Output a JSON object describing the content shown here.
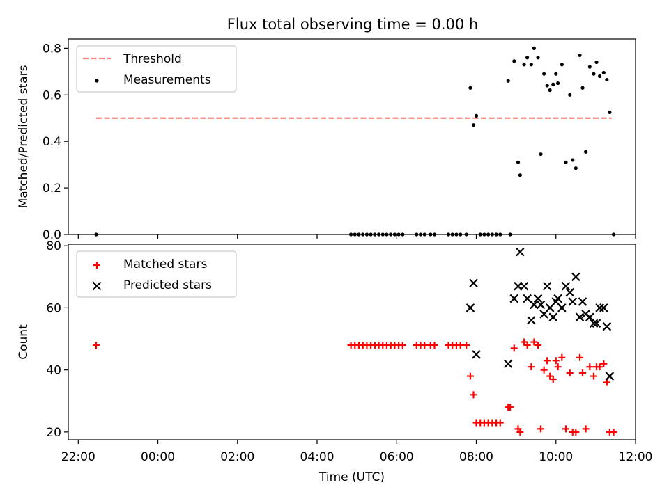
{
  "figure": {
    "title": "Flux total observing time = 0.00 h"
  },
  "chart_data": [
    {
      "type": "scatter",
      "panel": "top",
      "ylabel": "Matched/Predicted stars",
      "xlabel": "",
      "x_unit": "hours relative to 00:00 UTC",
      "xlim": [
        -2.25,
        12.0
      ],
      "ylim": [
        0.0,
        0.84
      ],
      "yticks": [
        0.0,
        0.2,
        0.4,
        0.6,
        0.8
      ],
      "ytick_labels": [
        "0.0",
        "0.2",
        "0.4",
        "0.6",
        "0.8"
      ],
      "legend": {
        "placement": "top-left",
        "entries": [
          "Threshold",
          "Measurements"
        ]
      },
      "threshold": {
        "label": "Threshold",
        "y": 0.5,
        "x_range": [
          -1.55,
          11.4
        ],
        "color": "#ff7f7f"
      },
      "series": [
        {
          "name": "Measurements",
          "color": "#000000",
          "points": [
            [
              -1.55,
              0.0
            ],
            [
              4.85,
              0.0
            ],
            [
              4.95,
              0.0
            ],
            [
              5.05,
              0.0
            ],
            [
              5.15,
              0.0
            ],
            [
              5.25,
              0.0
            ],
            [
              5.35,
              0.0
            ],
            [
              5.45,
              0.0
            ],
            [
              5.55,
              0.0
            ],
            [
              5.65,
              0.0
            ],
            [
              5.75,
              0.0
            ],
            [
              5.85,
              0.0
            ],
            [
              5.95,
              0.0
            ],
            [
              6.05,
              0.0
            ],
            [
              6.15,
              0.0
            ],
            [
              6.5,
              0.0
            ],
            [
              6.6,
              0.0
            ],
            [
              6.7,
              0.0
            ],
            [
              6.85,
              0.0
            ],
            [
              6.95,
              0.0
            ],
            [
              7.3,
              0.0
            ],
            [
              7.4,
              0.0
            ],
            [
              7.5,
              0.0
            ],
            [
              7.6,
              0.0
            ],
            [
              7.75,
              0.0
            ],
            [
              8.1,
              0.0
            ],
            [
              8.2,
              0.0
            ],
            [
              8.3,
              0.0
            ],
            [
              8.4,
              0.0
            ],
            [
              8.5,
              0.0
            ],
            [
              8.6,
              0.0
            ],
            [
              8.85,
              0.0
            ],
            [
              11.45,
              0.0
            ],
            [
              7.85,
              0.63
            ],
            [
              7.93,
              0.47
            ],
            [
              8.0,
              0.51
            ],
            [
              8.8,
              0.66
            ],
            [
              8.95,
              0.745
            ],
            [
              9.05,
              0.31
            ],
            [
              9.1,
              0.255
            ],
            [
              9.2,
              0.73
            ],
            [
              9.28,
              0.76
            ],
            [
              9.38,
              0.73
            ],
            [
              9.45,
              0.8
            ],
            [
              9.55,
              0.76
            ],
            [
              9.62,
              0.345
            ],
            [
              9.7,
              0.69
            ],
            [
              9.78,
              0.64
            ],
            [
              9.85,
              0.62
            ],
            [
              9.93,
              0.645
            ],
            [
              10.0,
              0.69
            ],
            [
              10.05,
              0.65
            ],
            [
              10.15,
              0.73
            ],
            [
              10.25,
              0.31
            ],
            [
              10.35,
              0.6
            ],
            [
              10.42,
              0.32
            ],
            [
              10.5,
              0.285
            ],
            [
              10.6,
              0.77
            ],
            [
              10.67,
              0.63
            ],
            [
              10.75,
              0.355
            ],
            [
              10.85,
              0.72
            ],
            [
              10.95,
              0.69
            ],
            [
              11.02,
              0.74
            ],
            [
              11.1,
              0.68
            ],
            [
              11.2,
              0.695
            ],
            [
              11.28,
              0.665
            ],
            [
              11.35,
              0.525
            ]
          ]
        }
      ]
    },
    {
      "type": "scatter",
      "panel": "bottom",
      "ylabel": "Count",
      "xlabel": "Time (UTC)",
      "x_unit": "hours relative to 00:00 UTC",
      "xlim": [
        -2.25,
        12.0
      ],
      "ylim": [
        17.5,
        80.5
      ],
      "yticks": [
        20,
        40,
        60,
        80
      ],
      "ytick_labels": [
        "20",
        "40",
        "60",
        "80"
      ],
      "xticks": [
        -2,
        0,
        2,
        4,
        6,
        8,
        10,
        12
      ],
      "xtick_labels": [
        "22:00",
        "00:00",
        "02:00",
        "04:00",
        "06:00",
        "08:00",
        "10:00",
        "12:00"
      ],
      "legend": {
        "placement": "top-left",
        "entries": [
          "Matched stars",
          "Predicted stars"
        ]
      },
      "series": [
        {
          "name": "Matched stars",
          "marker": "plus",
          "color": "#ff0000",
          "points": [
            [
              -1.55,
              48
            ],
            [
              4.85,
              48
            ],
            [
              4.95,
              48
            ],
            [
              5.05,
              48
            ],
            [
              5.15,
              48
            ],
            [
              5.25,
              48
            ],
            [
              5.35,
              48
            ],
            [
              5.45,
              48
            ],
            [
              5.55,
              48
            ],
            [
              5.65,
              48
            ],
            [
              5.75,
              48
            ],
            [
              5.85,
              48
            ],
            [
              5.95,
              48
            ],
            [
              6.05,
              48
            ],
            [
              6.15,
              48
            ],
            [
              6.5,
              48
            ],
            [
              6.6,
              48
            ],
            [
              6.7,
              48
            ],
            [
              6.85,
              48
            ],
            [
              6.95,
              48
            ],
            [
              7.3,
              48
            ],
            [
              7.4,
              48
            ],
            [
              7.5,
              48
            ],
            [
              7.6,
              48
            ],
            [
              7.75,
              48
            ],
            [
              7.85,
              38
            ],
            [
              7.93,
              32
            ],
            [
              8.0,
              23
            ],
            [
              8.1,
              23
            ],
            [
              8.2,
              23
            ],
            [
              8.3,
              23
            ],
            [
              8.4,
              23
            ],
            [
              8.5,
              23
            ],
            [
              8.6,
              23
            ],
            [
              8.8,
              28
            ],
            [
              8.85,
              28
            ],
            [
              8.95,
              47
            ],
            [
              9.05,
              21
            ],
            [
              9.1,
              20
            ],
            [
              9.2,
              49
            ],
            [
              9.28,
              48
            ],
            [
              9.38,
              41
            ],
            [
              9.45,
              49
            ],
            [
              9.55,
              48
            ],
            [
              9.62,
              21
            ],
            [
              9.7,
              40
            ],
            [
              9.78,
              43
            ],
            [
              9.85,
              38
            ],
            [
              9.93,
              37
            ],
            [
              10.0,
              43
            ],
            [
              10.05,
              41
            ],
            [
              10.15,
              44
            ],
            [
              10.25,
              21
            ],
            [
              10.35,
              39
            ],
            [
              10.42,
              20
            ],
            [
              10.5,
              20
            ],
            [
              10.6,
              44
            ],
            [
              10.67,
              39
            ],
            [
              10.75,
              21
            ],
            [
              10.85,
              41
            ],
            [
              10.95,
              38
            ],
            [
              11.02,
              41
            ],
            [
              11.1,
              41
            ],
            [
              11.2,
              42
            ],
            [
              11.28,
              36
            ],
            [
              11.35,
              20
            ],
            [
              11.45,
              20
            ]
          ]
        },
        {
          "name": "Predicted stars",
          "marker": "x",
          "color": "#000000",
          "points": [
            [
              7.85,
              60
            ],
            [
              7.93,
              68
            ],
            [
              8.0,
              45
            ],
            [
              8.8,
              42
            ],
            [
              8.95,
              63
            ],
            [
              9.05,
              67
            ],
            [
              9.1,
              78
            ],
            [
              9.2,
              67
            ],
            [
              9.28,
              63
            ],
            [
              9.38,
              56
            ],
            [
              9.45,
              61
            ],
            [
              9.55,
              63
            ],
            [
              9.62,
              61
            ],
            [
              9.7,
              58
            ],
            [
              9.78,
              67
            ],
            [
              9.85,
              60
            ],
            [
              9.93,
              57
            ],
            [
              10.0,
              62
            ],
            [
              10.05,
              63
            ],
            [
              10.15,
              60
            ],
            [
              10.25,
              67
            ],
            [
              10.35,
              65
            ],
            [
              10.42,
              62
            ],
            [
              10.5,
              70
            ],
            [
              10.6,
              57
            ],
            [
              10.67,
              62
            ],
            [
              10.75,
              58
            ],
            [
              10.85,
              57
            ],
            [
              10.95,
              55
            ],
            [
              11.02,
              55
            ],
            [
              11.1,
              60
            ],
            [
              11.2,
              60
            ],
            [
              11.28,
              54
            ],
            [
              11.35,
              38
            ]
          ]
        }
      ]
    }
  ]
}
